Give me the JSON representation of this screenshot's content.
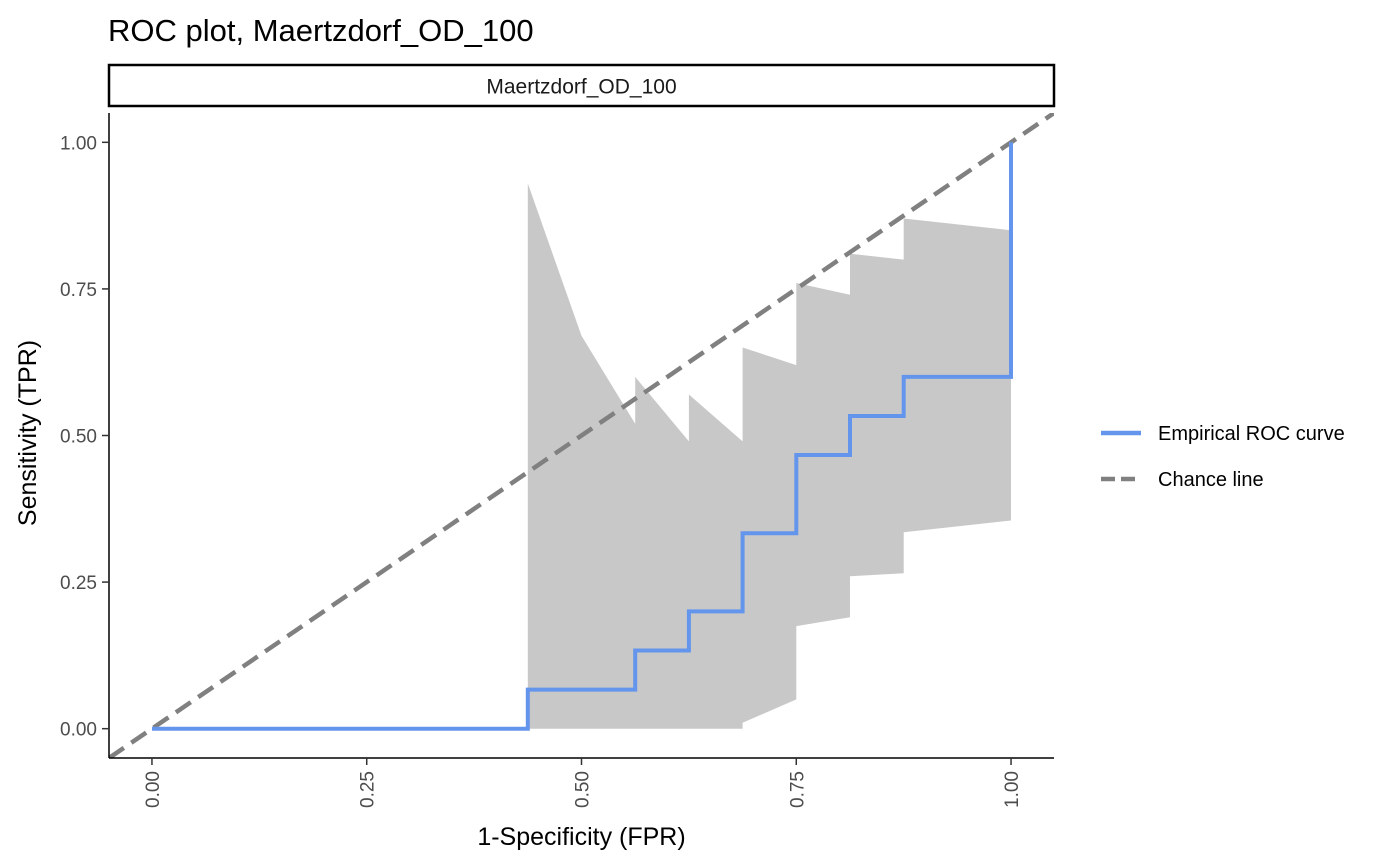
{
  "chart_data": {
    "type": "line",
    "title": "ROC plot, Maertzdorf_OD_100",
    "facet_label": "Maertzdorf_OD_100",
    "xlabel": "1-Specificity (FPR)",
    "ylabel": "Sensitivity (TPR)",
    "xlim": [
      -0.05,
      1.05
    ],
    "ylim": [
      -0.05,
      1.05
    ],
    "x_ticks": [
      0,
      0.25,
      0.5,
      0.75,
      1
    ],
    "x_tick_labels": [
      "0.00",
      "0.25",
      "0.50",
      "0.75",
      "1.00"
    ],
    "y_ticks": [
      0,
      0.25,
      0.5,
      0.75,
      1
    ],
    "y_tick_labels": [
      "0.00",
      "0.25",
      "0.50",
      "0.75",
      "1.00"
    ],
    "grid": false,
    "legend_position": "right",
    "series": [
      {
        "name": "Empirical ROC curve",
        "kind": "step",
        "color": "#6495ED",
        "x": [
          0,
          0.4375,
          0.4375,
          0.5625,
          0.5625,
          0.625,
          0.625,
          0.6875,
          0.6875,
          0.75,
          0.75,
          0.8125,
          0.8125,
          0.875,
          0.875,
          1.0,
          1.0
        ],
        "y": [
          0,
          0,
          0.0667,
          0.0667,
          0.1333,
          0.1333,
          0.2,
          0.2,
          0.3333,
          0.3333,
          0.4667,
          0.4667,
          0.5333,
          0.5333,
          0.6,
          0.6,
          1.0
        ]
      },
      {
        "name": "Chance line",
        "kind": "dashed",
        "color": "#808080",
        "x": [
          -0.05,
          1.05
        ],
        "y": [
          -0.05,
          1.05
        ]
      }
    ],
    "confidence_band": {
      "color": "#C8C8C8",
      "upper": [
        [
          0.4375,
          0.93
        ],
        [
          0.5,
          0.67
        ],
        [
          0.5625,
          0.52
        ],
        [
          0.5625,
          0.6
        ],
        [
          0.625,
          0.49
        ],
        [
          0.625,
          0.57
        ],
        [
          0.6875,
          0.49
        ],
        [
          0.6875,
          0.65
        ],
        [
          0.75,
          0.62
        ],
        [
          0.75,
          0.76
        ],
        [
          0.8125,
          0.74
        ],
        [
          0.8125,
          0.81
        ],
        [
          0.875,
          0.8
        ],
        [
          0.875,
          0.87
        ],
        [
          1.0,
          0.85
        ]
      ],
      "lower": [
        [
          0.4375,
          0.0
        ],
        [
          0.6875,
          0.0
        ],
        [
          0.6875,
          0.01
        ],
        [
          0.75,
          0.05
        ],
        [
          0.75,
          0.175
        ],
        [
          0.8125,
          0.19
        ],
        [
          0.8125,
          0.26
        ],
        [
          0.875,
          0.265
        ],
        [
          0.875,
          0.335
        ],
        [
          1.0,
          0.355
        ]
      ]
    }
  },
  "legend": {
    "items": [
      {
        "label": "Empirical ROC curve",
        "color": "#6495ED",
        "style": "solid"
      },
      {
        "label": "Chance line",
        "color": "#808080",
        "style": "dashed"
      }
    ]
  }
}
